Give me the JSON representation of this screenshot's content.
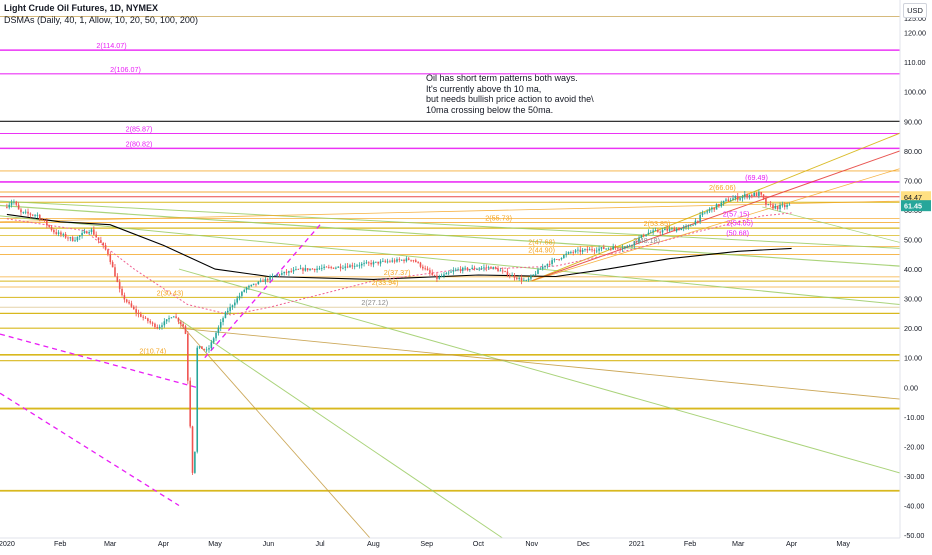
{
  "header": {
    "title": "Light Crude Oil Futures, 1D, NYMEX",
    "indicator": "DSMAs (Daily, 40, 1, Allow, 10, 20, 50, 100, 200)",
    "currency": "USD"
  },
  "annotation": {
    "lines": [
      "Oil has short term patterns both ways.",
      "It's currently above th 10 ma,",
      "but needs bullish price action to avoid the\\",
      "10ma crossing below the 50ma."
    ]
  },
  "colors": {
    "up": "#26a69a",
    "down": "#ef5350",
    "level_yellow": "#d4b106",
    "level_orange": "#f5a623",
    "level_magenta": "#e91ef5",
    "level_red": "#e53935",
    "trend_green": "#4caf50",
    "trend_light_green": "#9ccc65",
    "trend_brown": "#c49a3e",
    "ma_pink": "#f06292",
    "ma_black": "#000000",
    "price_badge": "#26a69a",
    "level_badge": "#ffe082"
  },
  "chart_data": {
    "type": "candlestick",
    "title": "Light Crude Oil Futures, 1D, NYMEX",
    "x_ticks": [
      "2020",
      "Feb",
      "Mar",
      "Apr",
      "May",
      "Jun",
      "Jul",
      "Aug",
      "Sep",
      "Oct",
      "Nov",
      "Dec",
      "2021",
      "Feb",
      "Mar",
      "Apr",
      "May"
    ],
    "y_ticks": [
      "125.00",
      "120.00",
      "110.00",
      "100.00",
      "90.00",
      "80.00",
      "70.00",
      "60.00",
      "50.00",
      "40.00",
      "30.00",
      "20.00",
      "10.00",
      "0.00",
      "-10.00",
      "-20.00",
      "-30.00",
      "-40.00",
      "-50.00"
    ],
    "ylim": [
      -51,
      128
    ],
    "last_price": "61.45",
    "level_badge": "64.47",
    "price_path": [
      [
        "2020-01-01",
        61.0
      ],
      [
        "2020-01-06",
        63.2
      ],
      [
        "2020-01-10",
        59.0
      ],
      [
        "2020-01-20",
        58.3
      ],
      [
        "2020-01-30",
        52.5
      ],
      [
        "2020-02-10",
        49.9
      ],
      [
        "2020-02-20",
        53.5
      ],
      [
        "2020-03-01",
        45.5
      ],
      [
        "2020-03-09",
        31.0
      ],
      [
        "2020-03-18",
        25.0
      ],
      [
        "2020-03-30",
        20.1
      ],
      [
        "2020-04-08",
        24.5
      ],
      [
        "2020-04-15",
        19.9
      ],
      [
        "2020-04-20",
        -37.6
      ],
      [
        "2020-04-22",
        13.8
      ],
      [
        "2020-04-28",
        12.3
      ],
      [
        "2020-05-08",
        24.7
      ],
      [
        "2020-05-20",
        33.5
      ],
      [
        "2020-06-08",
        38.2
      ],
      [
        "2020-06-20",
        39.8
      ],
      [
        "2020-07-10",
        40.5
      ],
      [
        "2020-08-05",
        42.2
      ],
      [
        "2020-08-25",
        43.4
      ],
      [
        "2020-09-08",
        36.8
      ],
      [
        "2020-09-20",
        39.8
      ],
      [
        "2020-10-10",
        40.6
      ],
      [
        "2020-10-30",
        35.8
      ],
      [
        "2020-11-10",
        41.4
      ],
      [
        "2020-11-25",
        45.7
      ],
      [
        "2020-12-10",
        46.8
      ],
      [
        "2020-12-28",
        47.6
      ],
      [
        "2021-01-08",
        52.2
      ],
      [
        "2021-01-20",
        53.2
      ],
      [
        "2021-02-01",
        54.0
      ],
      [
        "2021-02-12",
        59.5
      ],
      [
        "2021-02-25",
        63.5
      ],
      [
        "2021-03-08",
        65.0
      ],
      [
        "2021-03-15",
        65.4
      ],
      [
        "2021-03-19",
        61.4
      ],
      [
        "2021-03-25",
        60.9
      ],
      [
        "2021-04-01",
        61.45
      ]
    ],
    "series": [
      {
        "values": [
          [
            "2020-01-01",
            58.5
          ],
          [
            "2020-02-01",
            56.0
          ],
          [
            "2020-03-01",
            55.0
          ],
          [
            "2020-04-01",
            48.0
          ],
          [
            "2020-05-01",
            40.0
          ],
          [
            "2020-06-01",
            37.5
          ],
          [
            "2020-08-01",
            36.5
          ],
          [
            "2020-10-01",
            38.0
          ],
          [
            "2020-11-15",
            37.5
          ],
          [
            "2020-12-15",
            40.0
          ],
          [
            "2021-01-20",
            43.5
          ],
          [
            "2021-03-01",
            46.0
          ],
          [
            "2021-04-01",
            47.0
          ]
        ]
      },
      {
        "values": [
          [
            "2020-01-01",
            57.0
          ],
          [
            "2020-02-15",
            53.0
          ],
          [
            "2020-03-15",
            40.0
          ],
          [
            "2020-04-15",
            28.0
          ],
          [
            "2020-05-10",
            24.5
          ],
          [
            "2020-06-01",
            27.0
          ],
          [
            "2020-06-25",
            30.5
          ],
          [
            "2020-08-01",
            36.0
          ],
          [
            "2020-09-15",
            39.5
          ],
          [
            "2020-11-15",
            41.0
          ],
          [
            "2021-01-01",
            47.0
          ],
          [
            "2021-02-01",
            52.0
          ],
          [
            "2021-03-15",
            58.0
          ],
          [
            "2021-04-01",
            59.0
          ]
        ]
      }
    ],
    "levels": [
      {
        "label": "2(114.07)",
        "value": 114.07,
        "color": "magenta",
        "label_date": "2020-02-22"
      },
      {
        "label": "2(106.07)",
        "value": 106.07,
        "color": "magenta",
        "label_date": "2020-03-01"
      },
      {
        "label": "2(85.87)",
        "value": 85.87,
        "color": "magenta",
        "label_date": "2020-03-10"
      },
      {
        "label": "2(80.82)",
        "value": 80.82,
        "color": "magenta",
        "label_date": "2020-03-10"
      },
      {
        "label": "(69.49)",
        "value": 69.49,
        "color": "magenta",
        "label_date": "2021-03-05"
      },
      {
        "label": "2(66.06)",
        "value": 66.06,
        "color": "orange",
        "label_date": "2021-02-12"
      },
      {
        "label": "2(57.15)",
        "value": 57.15,
        "color": "magenta",
        "label_date": "2021-02-20"
      },
      {
        "label": "2(55.73)",
        "value": 55.73,
        "color": "orange",
        "label_date": "2020-10-05"
      },
      {
        "label": "2(53.85)",
        "value": 53.85,
        "color": "orange",
        "label_date": "2021-01-05"
      },
      {
        "label": "2(54.05)",
        "value": 54.05,
        "color": "magenta",
        "label_date": "2021-02-22"
      },
      {
        "label": "(50.68)",
        "value": 50.68,
        "color": "magenta",
        "label_date": "2021-02-22"
      },
      {
        "label": "2(47.68)",
        "value": 47.68,
        "color": "orange",
        "label_date": "2020-10-30"
      },
      {
        "label": "2(44.90)",
        "value": 44.9,
        "color": "orange",
        "label_date": "2020-10-30"
      },
      {
        "label": "2(48.18)",
        "value": 48.18,
        "color": "gray",
        "label_date": "2020-12-30"
      },
      {
        "label": "2(37.37)",
        "value": 37.37,
        "color": "orange",
        "label_date": "2020-08-07"
      },
      {
        "label": "2(33.94)",
        "value": 33.94,
        "color": "orange",
        "label_date": "2020-07-31"
      },
      {
        "label": "2(30.43)",
        "value": 30.43,
        "color": "orange",
        "label_date": "2020-03-28"
      },
      {
        "label": "2(27.12)",
        "value": 27.12,
        "color": "gray",
        "label_date": "2020-07-25"
      },
      {
        "label": "2(10.74)",
        "value": 10.74,
        "color": "orange",
        "label_date": "2020-03-18"
      }
    ]
  }
}
